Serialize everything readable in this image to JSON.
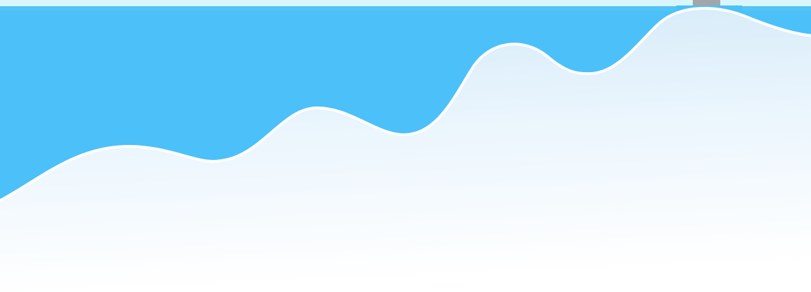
{
  "colors": {
    "sky": "#4BC0F9",
    "top_strip": "#D9F6FC",
    "strip_shadow": "#5DC7F3",
    "tab_gray": "#A3A6A9",
    "wave_stroke": "#FFFFFF",
    "area_top": "#D4EAF9",
    "area_bottom": "#FFFFFF",
    "grid_line": "#FFFFFF"
  },
  "decor": {
    "type": "hero-wave-background",
    "grid_lines": "vertical"
  }
}
